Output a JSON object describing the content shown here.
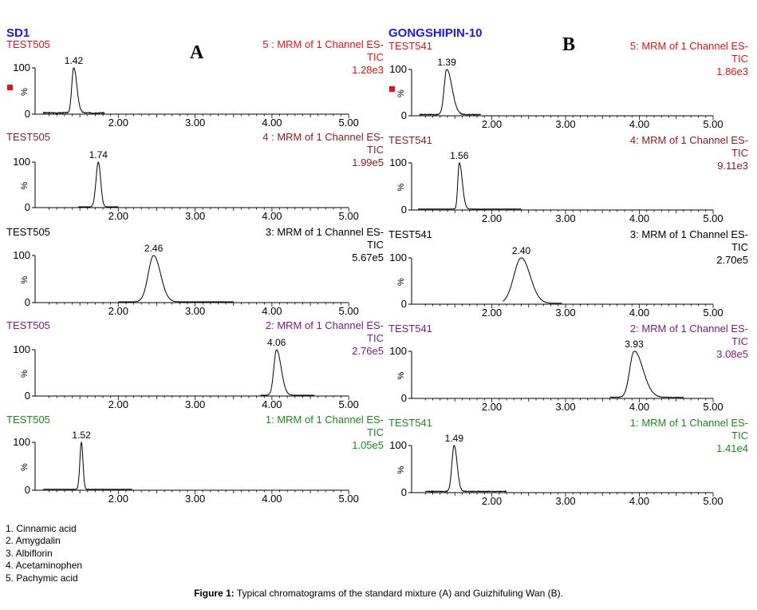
{
  "colors": {
    "blue": "#1a1adc",
    "trace": "#000000",
    "ch5": "#e01414",
    "ch4": "#8b1a1a",
    "ch3": "#000000",
    "ch2": "#7a1a7a",
    "ch1": "#1a8a1a"
  },
  "chart_data": [
    {
      "type": "line",
      "panel_letter": "A",
      "sample_title": "SD1",
      "x_ticks": [
        "2.00",
        "3.00",
        "4.00",
        "5.00"
      ],
      "xlim": [
        1.0,
        5.0
      ],
      "ylim": [
        0,
        100
      ],
      "y_ticks": [
        "0",
        "100"
      ],
      "ylabel": "%",
      "traces": [
        {
          "channel": 5,
          "color_key": "ch5",
          "sample": "TEST505",
          "channel_label": "5 : MRM of 1 Channel ES-",
          "tic": "TIC",
          "intensity": "1.28e3",
          "peak_rt": 1.42,
          "peak_label": "1.42",
          "marker": true,
          "x_start": 1.02,
          "x_end": 1.82,
          "noise": 4,
          "width": 0.025,
          "tail": 0.04
        },
        {
          "channel": 4,
          "color_key": "ch4",
          "sample": "TEST505",
          "channel_label": "4 : MRM of 1 Channel ES-",
          "tic": "TIC",
          "intensity": "1.99e5",
          "peak_rt": 1.74,
          "peak_label": "1.74",
          "marker": false,
          "x_start": 1.48,
          "x_end": 2.0,
          "noise": 0,
          "width": 0.03,
          "tail": 0.03
        },
        {
          "channel": 3,
          "color_key": "ch3",
          "sample": "TEST505",
          "channel_label": "3: MRM of 1 Channel ES-",
          "tic": "TIC",
          "intensity": "5.67e5",
          "peak_rt": 2.46,
          "peak_label": "2.46",
          "marker": false,
          "x_start": 2.0,
          "x_end": 3.5,
          "noise": 0,
          "width": 0.07,
          "tail": 0.09
        },
        {
          "channel": 2,
          "color_key": "ch2",
          "sample": "TEST505",
          "channel_label": "2: MRM of 1 Channel ES-",
          "tic": "TIC",
          "intensity": "2.76e5",
          "peak_rt": 4.06,
          "peak_label": "4.06",
          "marker": false,
          "x_start": 3.85,
          "x_end": 4.55,
          "noise": 0,
          "width": 0.035,
          "tail": 0.06
        },
        {
          "channel": 1,
          "color_key": "ch1",
          "sample": "TEST505",
          "channel_label": "1: MRM of 1 Channel ES-",
          "tic": "TIC",
          "intensity": "1.05e5",
          "peak_rt": 1.52,
          "peak_label": "1.52",
          "marker": false,
          "x_start": 1.02,
          "x_end": 2.18,
          "noise": 1,
          "width": 0.02,
          "tail": 0.02
        }
      ]
    },
    {
      "type": "line",
      "panel_letter": "B",
      "sample_title": "GONGSHIPIN-10",
      "x_ticks": [
        "2.00",
        "3.00",
        "4.00",
        "5.00"
      ],
      "xlim": [
        1.0,
        5.0
      ],
      "ylim": [
        0,
        100
      ],
      "y_ticks": [
        "0",
        "100"
      ],
      "ylabel": "%",
      "traces": [
        {
          "channel": 5,
          "color_key": "ch5",
          "sample": "TEST541",
          "channel_label": "5: MRM of 1 Channel ES-",
          "tic": "TIC",
          "intensity": "1.86e3",
          "peak_rt": 1.39,
          "peak_label": "1.39",
          "marker": true,
          "x_start": 1.02,
          "x_end": 1.85,
          "noise": 3,
          "width": 0.035,
          "tail": 0.07
        },
        {
          "channel": 4,
          "color_key": "ch4",
          "sample": "TEST541",
          "channel_label": "4: MRM of 1 Channel ES-",
          "tic": "TIC",
          "intensity": "9.11e3",
          "peak_rt": 1.56,
          "peak_label": "1.56",
          "marker": false,
          "x_start": 1.0,
          "x_end": 2.4,
          "noise": 1,
          "width": 0.02,
          "tail": 0.04
        },
        {
          "channel": 3,
          "color_key": "ch3",
          "sample": "TEST541",
          "channel_label": "3: MRM of 1 Channel ES-",
          "tic": "TIC",
          "intensity": "2.70e5",
          "peak_rt": 2.4,
          "peak_label": "2.40",
          "marker": false,
          "x_start": 2.15,
          "x_end": 2.95,
          "noise": 1,
          "width": 0.1,
          "tail": 0.12
        },
        {
          "channel": 2,
          "color_key": "ch2",
          "sample": "TEST541",
          "channel_label": "2: MRM of 1 Channel ES-",
          "tic": "TIC",
          "intensity": "3.08e5",
          "peak_rt": 3.93,
          "peak_label": "3.93",
          "marker": false,
          "x_start": 3.6,
          "x_end": 4.6,
          "noise": 2,
          "width": 0.06,
          "tail": 0.12
        },
        {
          "channel": 1,
          "color_key": "ch1",
          "sample": "TEST541",
          "channel_label": "1: MRM of 1 Channel ES-",
          "tic": "TIC",
          "intensity": "1.41e4",
          "peak_rt": 1.49,
          "peak_label": "1.49",
          "marker": false,
          "x_start": 1.1,
          "x_end": 2.2,
          "noise": 3,
          "width": 0.03,
          "tail": 0.04
        }
      ]
    }
  ],
  "legend_items": [
    "1. Cinnamic acid",
    "2. Amygdalin",
    "3. Albiflorin",
    "4. Acetaminophen",
    "5. Pachymic acid"
  ],
  "caption": {
    "label": "Figure 1:",
    "text": " Typical chromatograms of the standard mixture (A) and Guizhifuling Wan (B)."
  }
}
